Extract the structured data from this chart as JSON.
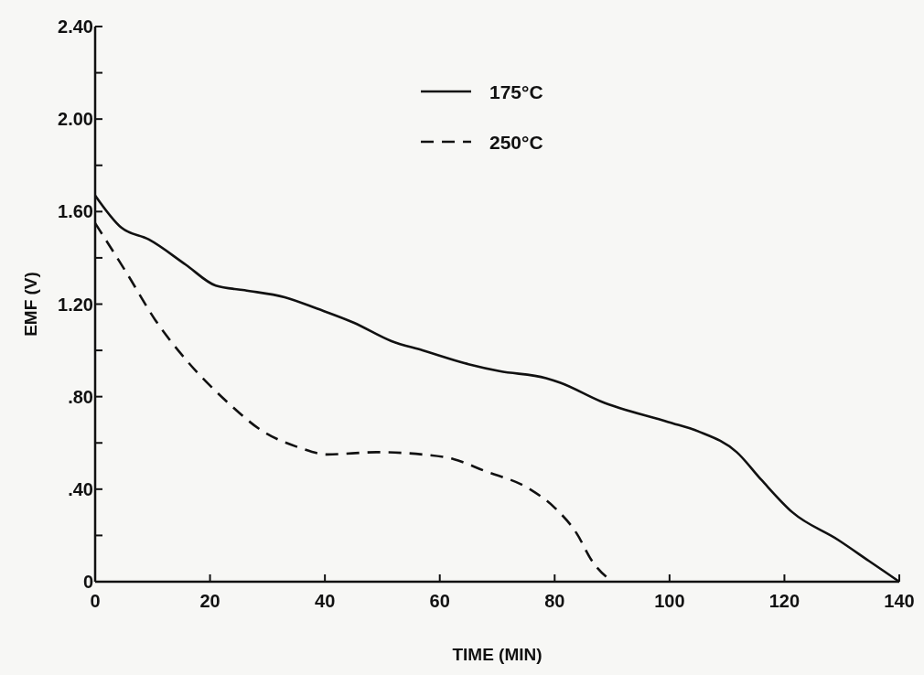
{
  "chart_data": {
    "type": "line",
    "xlabel": "TIME (MIN)",
    "ylabel": "EMF (V)",
    "xlim": [
      0,
      140
    ],
    "ylim": [
      0,
      2.4
    ],
    "xticks": [
      0,
      20,
      40,
      60,
      80,
      100,
      120,
      140
    ],
    "yticks": [
      0,
      {
        "value": 0.2,
        "label": null
      },
      {
        "value": 0.4,
        "label": ".40"
      },
      {
        "value": 0.6,
        "label": null
      },
      {
        "value": 0.8,
        "label": ".80"
      },
      {
        "value": 1.0,
        "label": null
      },
      {
        "value": 1.2,
        "label": "1.20"
      },
      {
        "value": 1.4,
        "label": null
      },
      {
        "value": 1.6,
        "label": "1.60"
      },
      {
        "value": 1.8,
        "label": null
      },
      {
        "value": 2.0,
        "label": "2.00"
      },
      {
        "value": 2.2,
        "label": null
      },
      {
        "value": 2.4,
        "label": "2.40"
      }
    ],
    "legend": "top",
    "grid": false,
    "marker": "none",
    "series": [
      {
        "name": "175°C",
        "color": "#111111",
        "line_style": "solid",
        "x": [
          0,
          4.6,
          9.3,
          15.8,
          21,
          26,
          33,
          38.7,
          45,
          51.6,
          57,
          65,
          70.4,
          78.5,
          81,
          88,
          99.8,
          105,
          111.7,
          116,
          121.4,
          129.4,
          134.7,
          140
        ],
        "values": [
          1.67,
          1.53,
          1.48,
          1.37,
          1.28,
          1.26,
          1.23,
          1.18,
          1.12,
          1.04,
          1.0,
          0.94,
          0.91,
          0.88,
          0.86,
          0.78,
          0.69,
          0.65,
          0.56,
          0.44,
          0.3,
          0.18,
          0.09,
          0
        ]
      },
      {
        "name": "250°C",
        "color": "#111111",
        "line_style": "dashed",
        "x": [
          0,
          5.6,
          10.5,
          15.8,
          23.3,
          28.6,
          35.5,
          40.4,
          49,
          57,
          62.4,
          67.7,
          75.7,
          80,
          83.8,
          86.5,
          90
        ],
        "values": [
          1.55,
          1.33,
          1.13,
          0.96,
          0.77,
          0.66,
          0.58,
          0.55,
          0.56,
          0.55,
          0.53,
          0.48,
          0.4,
          0.32,
          0.21,
          0.09,
          0
        ]
      }
    ]
  }
}
